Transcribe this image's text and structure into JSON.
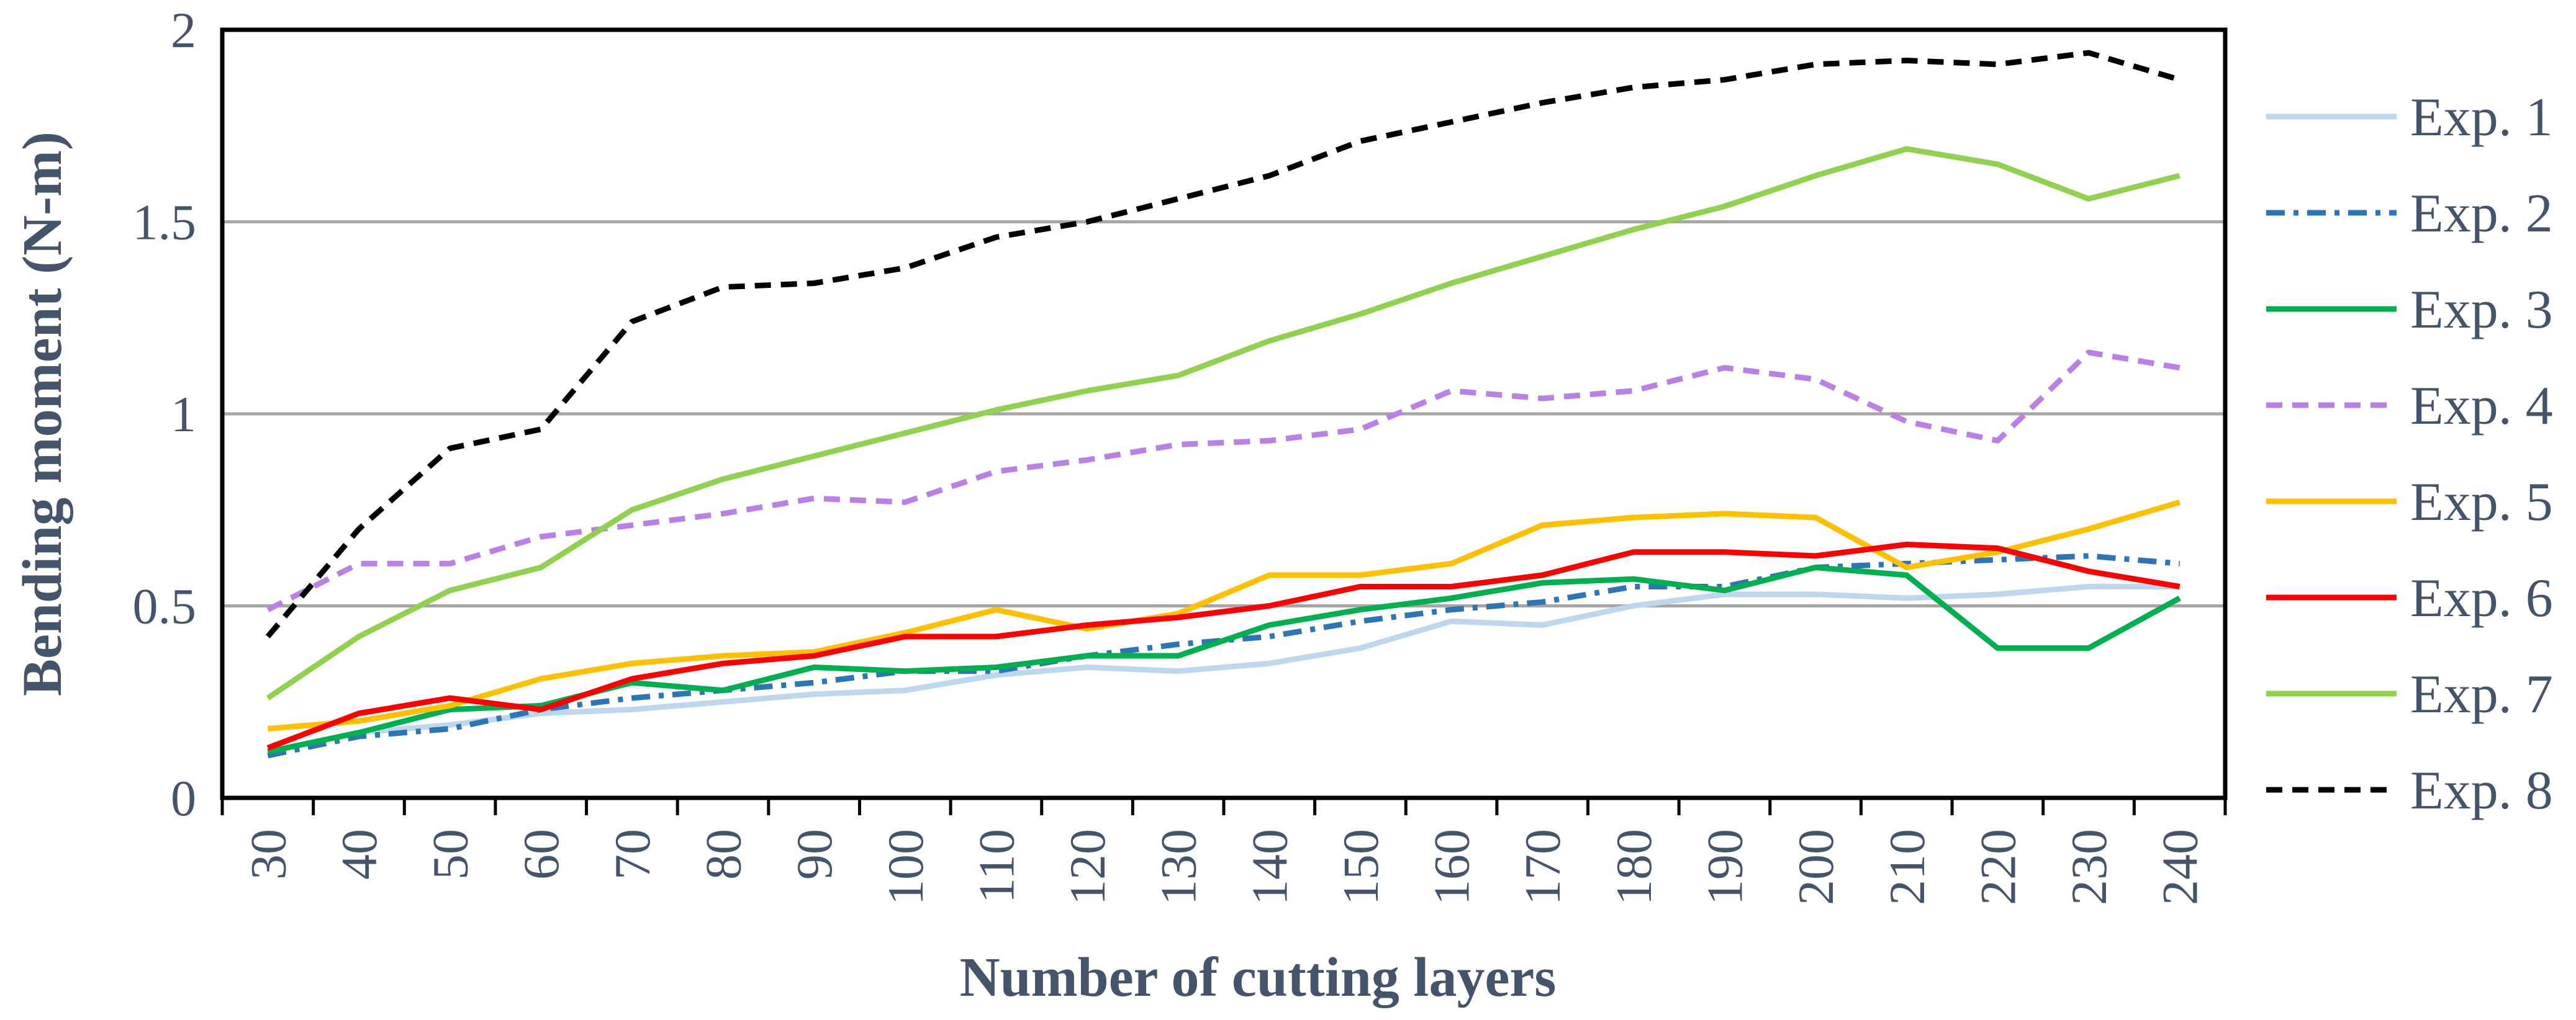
{
  "chart_data": {
    "type": "line",
    "title": "",
    "xlabel": "Number of cutting layers",
    "ylabel": "Bending moment (N-m)",
    "ylim": [
      0,
      2
    ],
    "yticks": [
      0,
      0.5,
      1,
      1.5,
      2
    ],
    "ytick_labels": [
      "0",
      "0.5",
      "1",
      "1.5",
      "2"
    ],
    "grid": true,
    "legend_position": "right",
    "categories": [
      "30",
      "40",
      "50",
      "60",
      "70",
      "80",
      "90",
      "100",
      "110",
      "120",
      "130",
      "140",
      "150",
      "160",
      "170",
      "180",
      "190",
      "200",
      "210",
      "220",
      "230",
      "240"
    ],
    "series": [
      {
        "name": "Exp. 1",
        "color": "#bdd7ee",
        "dash": "solid",
        "values": [
          0.12,
          0.17,
          0.19,
          0.22,
          0.23,
          0.25,
          0.27,
          0.28,
          0.32,
          0.34,
          0.33,
          0.35,
          0.39,
          0.46,
          0.45,
          0.5,
          0.53,
          0.53,
          0.52,
          0.53,
          0.55,
          0.55
        ]
      },
      {
        "name": "Exp. 2",
        "color": "#2e75b6",
        "dash": "dashdot",
        "values": [
          0.11,
          0.16,
          0.18,
          0.23,
          0.26,
          0.28,
          0.3,
          0.33,
          0.33,
          0.37,
          0.4,
          0.42,
          0.46,
          0.49,
          0.51,
          0.55,
          0.55,
          0.6,
          0.61,
          0.62,
          0.63,
          0.61
        ]
      },
      {
        "name": "Exp. 3",
        "color": "#00b050",
        "dash": "solid",
        "values": [
          0.12,
          0.17,
          0.23,
          0.24,
          0.3,
          0.28,
          0.34,
          0.33,
          0.34,
          0.37,
          0.37,
          0.45,
          0.49,
          0.52,
          0.56,
          0.57,
          0.54,
          0.6,
          0.58,
          0.39,
          0.39,
          0.52
        ]
      },
      {
        "name": "Exp. 4",
        "color": "#b980e6",
        "dash": "dash",
        "values": [
          0.49,
          0.61,
          0.61,
          0.68,
          0.71,
          0.74,
          0.78,
          0.77,
          0.85,
          0.88,
          0.92,
          0.93,
          0.96,
          1.06,
          1.04,
          1.06,
          1.12,
          1.09,
          0.98,
          0.93,
          1.16,
          1.12
        ]
      },
      {
        "name": "Exp. 5",
        "color": "#ffc000",
        "dash": "solid",
        "values": [
          0.18,
          0.2,
          0.24,
          0.31,
          0.35,
          0.37,
          0.38,
          0.43,
          0.49,
          0.44,
          0.48,
          0.58,
          0.58,
          0.61,
          0.71,
          0.73,
          0.74,
          0.73,
          0.6,
          0.64,
          0.7,
          0.77
        ]
      },
      {
        "name": "Exp. 6",
        "color": "#ff0000",
        "dash": "solid",
        "values": [
          0.13,
          0.22,
          0.26,
          0.23,
          0.31,
          0.35,
          0.37,
          0.42,
          0.42,
          0.45,
          0.47,
          0.5,
          0.55,
          0.55,
          0.58,
          0.64,
          0.64,
          0.63,
          0.66,
          0.65,
          0.59,
          0.55
        ]
      },
      {
        "name": "Exp. 7",
        "color": "#92d050",
        "dash": "solid",
        "values": [
          0.26,
          0.42,
          0.54,
          0.6,
          0.75,
          0.83,
          0.89,
          0.95,
          1.01,
          1.06,
          1.1,
          1.19,
          1.26,
          1.34,
          1.41,
          1.48,
          1.54,
          1.62,
          1.69,
          1.65,
          1.56,
          1.62
        ]
      },
      {
        "name": "Exp. 8",
        "color": "#000000",
        "dash": "dash",
        "values": [
          0.42,
          0.7,
          0.91,
          0.96,
          1.24,
          1.33,
          1.34,
          1.38,
          1.46,
          1.5,
          1.56,
          1.62,
          1.71,
          1.76,
          1.81,
          1.85,
          1.87,
          1.91,
          1.92,
          1.91,
          1.94,
          1.87
        ]
      }
    ]
  }
}
